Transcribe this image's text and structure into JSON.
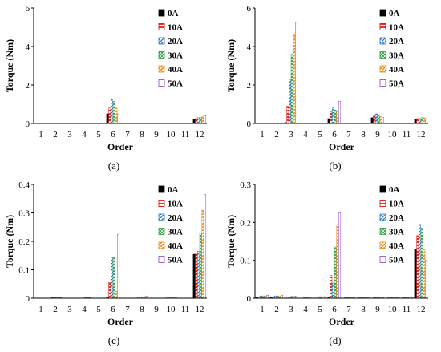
{
  "figure": {
    "legend_labels": [
      "0A",
      "10A",
      "20A",
      "30A",
      "40A",
      "50A"
    ],
    "series_colors": [
      "#000000",
      "#e00000",
      "#1f77c8",
      "#2e9a3a",
      "#f28a1a",
      "#8a3fc0"
    ],
    "legend_placement": "top-right",
    "grid": false
  },
  "chart_data": [
    {
      "type": "bar",
      "panel_label": "(a)",
      "xlabel": "Order",
      "ylabel": "Torque (Nm)",
      "ylim": [
        0,
        6
      ],
      "yticks": [
        "0",
        "2",
        "4",
        "6"
      ],
      "categories": [
        "1",
        "2",
        "3",
        "4",
        "5",
        "6",
        "7",
        "8",
        "9",
        "10",
        "11",
        "12"
      ],
      "series": [
        {
          "name": "0A",
          "values": [
            0,
            0,
            0,
            0,
            0,
            0.5,
            0,
            0,
            0,
            0,
            0,
            0.2
          ]
        },
        {
          "name": "10A",
          "values": [
            0,
            0,
            0,
            0,
            0,
            0.8,
            0,
            0,
            0,
            0,
            0,
            0.25
          ]
        },
        {
          "name": "20A",
          "values": [
            0,
            0,
            0,
            0,
            0,
            1.25,
            0,
            0,
            0,
            0,
            0,
            0.3
          ]
        },
        {
          "name": "30A",
          "values": [
            0,
            0,
            0,
            0,
            0,
            1.15,
            0,
            0,
            0,
            0,
            0,
            0.3
          ]
        },
        {
          "name": "40A",
          "values": [
            0,
            0,
            0,
            0,
            0,
            0.8,
            0,
            0,
            0,
            0,
            0,
            0.35
          ]
        },
        {
          "name": "50A",
          "values": [
            0,
            0,
            0,
            0,
            0,
            0.5,
            0,
            0,
            0,
            0,
            0,
            0.4
          ]
        }
      ]
    },
    {
      "type": "bar",
      "panel_label": "(b)",
      "xlabel": "Order",
      "ylabel": "Torque (Nm)",
      "ylim": [
        0,
        6
      ],
      "yticks": [
        "0",
        "2",
        "4",
        "6"
      ],
      "categories": [
        "1",
        "2",
        "3",
        "4",
        "5",
        "6",
        "7",
        "8",
        "9",
        "10",
        "11",
        "12"
      ],
      "series": [
        {
          "name": "0A",
          "values": [
            0,
            0,
            0.05,
            0,
            0,
            0.25,
            0,
            0,
            0.3,
            0,
            0,
            0.2
          ]
        },
        {
          "name": "10A",
          "values": [
            0,
            0,
            0.9,
            0,
            0,
            0.6,
            0,
            0,
            0.4,
            0,
            0,
            0.25
          ]
        },
        {
          "name": "20A",
          "values": [
            0,
            0,
            2.3,
            0,
            0,
            0.8,
            0,
            0,
            0.5,
            0,
            0,
            0.25
          ]
        },
        {
          "name": "30A",
          "values": [
            0,
            0,
            3.6,
            0,
            0,
            0.7,
            0,
            0,
            0.45,
            0,
            0,
            0.3
          ]
        },
        {
          "name": "40A",
          "values": [
            0,
            0,
            4.6,
            0,
            0,
            0.6,
            0,
            0,
            0.35,
            0,
            0,
            0.3
          ]
        },
        {
          "name": "50A",
          "values": [
            0,
            0,
            5.25,
            0,
            0,
            1.15,
            0,
            0,
            0.3,
            0,
            0,
            0.25
          ]
        }
      ]
    },
    {
      "type": "bar",
      "panel_label": "(c)",
      "xlabel": "Order",
      "ylabel": "Torque (Nm)",
      "ylim": [
        0,
        0.4
      ],
      "yticks": [
        "0",
        "0.1",
        "0.2",
        "0.3",
        "0.4"
      ],
      "categories": [
        "1",
        "2",
        "3",
        "4",
        "5",
        "6",
        "7",
        "8",
        "9",
        "10",
        "11",
        "12"
      ],
      "series": [
        {
          "name": "0A",
          "values": [
            0,
            0,
            0,
            0,
            0,
            0.002,
            0,
            0,
            0,
            0,
            0,
            0.155
          ]
        },
        {
          "name": "10A",
          "values": [
            0,
            0.002,
            0,
            0,
            0,
            0.055,
            0,
            0.003,
            0,
            0.003,
            0,
            0.155
          ]
        },
        {
          "name": "20A",
          "values": [
            0,
            0.002,
            0,
            0,
            0,
            0.145,
            0,
            0.004,
            0,
            0.003,
            0,
            0.165
          ]
        },
        {
          "name": "30A",
          "values": [
            0,
            0.002,
            0,
            0.002,
            0,
            0.145,
            0,
            0.005,
            0,
            0.003,
            0,
            0.23
          ]
        },
        {
          "name": "40A",
          "values": [
            0,
            0.002,
            0,
            0.002,
            0,
            0.025,
            0,
            0.006,
            0,
            0.003,
            0,
            0.31
          ]
        },
        {
          "name": "50A",
          "values": [
            0,
            0.002,
            0,
            0.002,
            0,
            0.225,
            0,
            0.007,
            0,
            0.003,
            0,
            0.365
          ]
        }
      ]
    },
    {
      "type": "bar",
      "panel_label": "(d)",
      "xlabel": "Order",
      "ylabel": "Torque (Nm)",
      "ylim": [
        0,
        0.3
      ],
      "yticks": [
        "0",
        "0.1",
        "0.2",
        "0.3"
      ],
      "categories": [
        "1",
        "2",
        "3",
        "4",
        "5",
        "6",
        "7",
        "8",
        "9",
        "10",
        "11",
        "12"
      ],
      "series": [
        {
          "name": "0A",
          "values": [
            0.002,
            0.002,
            0,
            0,
            0,
            0.003,
            0,
            0,
            0,
            0,
            0,
            0.13
          ]
        },
        {
          "name": "10A",
          "values": [
            0.004,
            0.004,
            0.003,
            0,
            0.003,
            0.06,
            0.002,
            0.002,
            0.002,
            0.002,
            0.002,
            0.165
          ]
        },
        {
          "name": "20A",
          "values": [
            0.006,
            0.006,
            0.004,
            0.002,
            0.004,
            0.04,
            0.002,
            0.002,
            0.002,
            0.002,
            0.002,
            0.195
          ]
        },
        {
          "name": "30A",
          "values": [
            0.006,
            0.006,
            0.005,
            0.002,
            0.004,
            0.135,
            0.002,
            0.002,
            0.002,
            0.002,
            0.002,
            0.185
          ]
        },
        {
          "name": "40A",
          "values": [
            0.006,
            0.006,
            0.005,
            0.002,
            0.004,
            0.19,
            0.002,
            0.002,
            0.002,
            0.002,
            0.002,
            0.13
          ]
        },
        {
          "name": "50A",
          "values": [
            0.008,
            0.008,
            0.006,
            0.003,
            0.004,
            0.225,
            0.002,
            0.002,
            0.002,
            0.002,
            0.002,
            0.1
          ]
        }
      ]
    }
  ]
}
